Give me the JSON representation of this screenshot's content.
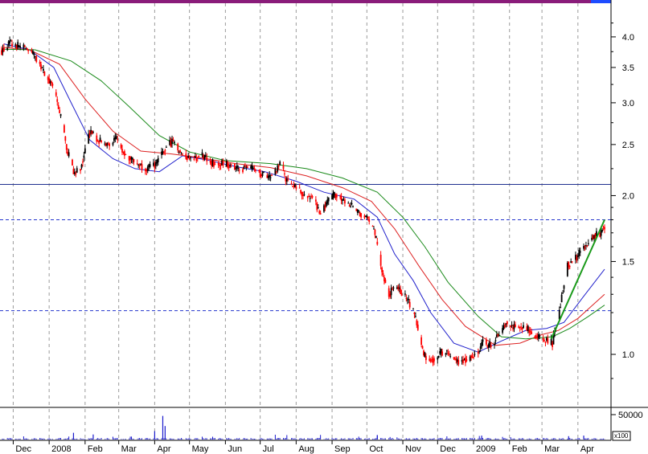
{
  "chart_data": {
    "type": "candlestick",
    "title": "",
    "price_axis": {
      "scale": "log",
      "ticks": [
        {
          "value": 1.0,
          "label": "1.0"
        },
        {
          "value": 1.5,
          "label": "1.5"
        },
        {
          "value": 2.0,
          "label": "2.0"
        },
        {
          "value": 2.5,
          "label": "2.5"
        },
        {
          "value": 3.0,
          "label": "3.0"
        },
        {
          "value": 3.5,
          "label": "3.5"
        },
        {
          "value": 4.0,
          "label": "4.0"
        }
      ],
      "ylim": [
        0.84,
        4.45
      ]
    },
    "volume_axis": {
      "ticks": [
        {
          "value": 50000,
          "label": "50000"
        }
      ],
      "multiplier_label": "x100"
    },
    "x_axis": {
      "labels": [
        "Dec",
        "2008",
        "Feb",
        "Mar",
        "Apr",
        "May",
        "Jun",
        "Jul",
        "Aug",
        "Sep",
        "Oct",
        "Nov",
        "Dec",
        "2009",
        "Feb",
        "Mar",
        "Apr"
      ],
      "start": "2007-11-21",
      "end": "2009-04-24"
    },
    "grid": "vertical dashed at month starts",
    "horizontal_lines": [
      {
        "value": 2.1,
        "style": "solid",
        "color": "#1f2f8f"
      },
      {
        "value": 1.8,
        "style": "dashed",
        "color": "#2233cc"
      },
      {
        "value": 1.21,
        "style": "dashed",
        "color": "#2233cc"
      }
    ],
    "trendline": {
      "color": "#1a9a1a",
      "points": [
        {
          "x": "2009-03-09",
          "y": 1.07
        },
        {
          "x": "2009-04-24",
          "y": 1.8
        }
      ]
    },
    "moving_averages": [
      {
        "color": "#2222cc",
        "points": [
          [
            "2007-11-23",
            3.88
          ],
          [
            "2007-12-15",
            3.78
          ],
          [
            "2008-01-05",
            3.5
          ],
          [
            "2008-01-20",
            3.0
          ],
          [
            "2008-02-05",
            2.55
          ],
          [
            "2008-02-25",
            2.35
          ],
          [
            "2008-03-15",
            2.25
          ],
          [
            "2008-04-05",
            2.22
          ],
          [
            "2008-04-25",
            2.38
          ],
          [
            "2008-05-15",
            2.34
          ],
          [
            "2008-06-10",
            2.27
          ],
          [
            "2008-07-05",
            2.22
          ],
          [
            "2008-08-01",
            2.13
          ],
          [
            "2008-08-25",
            2.03
          ],
          [
            "2008-09-20",
            1.97
          ],
          [
            "2008-10-10",
            1.82
          ],
          [
            "2008-10-25",
            1.55
          ],
          [
            "2008-11-10",
            1.38
          ],
          [
            "2008-11-25",
            1.2
          ],
          [
            "2008-12-15",
            1.05
          ],
          [
            "2009-01-05",
            1.01
          ],
          [
            "2009-01-25",
            1.06
          ],
          [
            "2009-02-15",
            1.11
          ],
          [
            "2009-03-05",
            1.12
          ],
          [
            "2009-03-20",
            1.15
          ],
          [
            "2009-04-05",
            1.28
          ],
          [
            "2009-04-24",
            1.45
          ]
        ]
      },
      {
        "color": "#dd2222",
        "points": [
          [
            "2007-11-23",
            3.82
          ],
          [
            "2007-12-15",
            3.78
          ],
          [
            "2008-01-10",
            3.55
          ],
          [
            "2008-02-01",
            3.05
          ],
          [
            "2008-02-25",
            2.65
          ],
          [
            "2008-03-20",
            2.43
          ],
          [
            "2008-04-15",
            2.4
          ],
          [
            "2008-05-10",
            2.36
          ],
          [
            "2008-06-10",
            2.3
          ],
          [
            "2008-07-10",
            2.26
          ],
          [
            "2008-08-10",
            2.18
          ],
          [
            "2008-09-10",
            2.07
          ],
          [
            "2008-10-05",
            1.95
          ],
          [
            "2008-10-25",
            1.73
          ],
          [
            "2008-11-15",
            1.47
          ],
          [
            "2008-12-05",
            1.27
          ],
          [
            "2008-12-25",
            1.13
          ],
          [
            "2009-01-20",
            1.04
          ],
          [
            "2009-02-10",
            1.05
          ],
          [
            "2009-03-01",
            1.09
          ],
          [
            "2009-03-15",
            1.11
          ],
          [
            "2009-04-01",
            1.17
          ],
          [
            "2009-04-24",
            1.3
          ]
        ]
      },
      {
        "color": "#1a8a1a",
        "points": [
          [
            "2007-11-23",
            3.79
          ],
          [
            "2007-12-20",
            3.78
          ],
          [
            "2008-01-20",
            3.6
          ],
          [
            "2008-02-15",
            3.3
          ],
          [
            "2008-03-10",
            2.95
          ],
          [
            "2008-04-05",
            2.6
          ],
          [
            "2008-05-01",
            2.42
          ],
          [
            "2008-06-01",
            2.33
          ],
          [
            "2008-07-10",
            2.3
          ],
          [
            "2008-08-10",
            2.25
          ],
          [
            "2008-09-10",
            2.16
          ],
          [
            "2008-10-10",
            2.03
          ],
          [
            "2008-11-01",
            1.82
          ],
          [
            "2008-11-20",
            1.6
          ],
          [
            "2008-12-10",
            1.37
          ],
          [
            "2009-01-05",
            1.18
          ],
          [
            "2009-01-25",
            1.08
          ],
          [
            "2009-02-15",
            1.07
          ],
          [
            "2009-03-10",
            1.08
          ],
          [
            "2009-03-25",
            1.12
          ],
          [
            "2009-04-10",
            1.18
          ],
          [
            "2009-04-24",
            1.24
          ]
        ]
      }
    ],
    "price_path": [
      [
        "2007-11-21",
        3.75
      ],
      [
        "2007-11-28",
        3.88
      ],
      [
        "2007-12-05",
        3.85
      ],
      [
        "2007-12-12",
        3.8
      ],
      [
        "2007-12-19",
        3.68
      ],
      [
        "2007-12-27",
        3.45
      ],
      [
        "2008-01-03",
        3.25
      ],
      [
        "2008-01-10",
        2.9
      ],
      [
        "2008-01-16",
        2.45
      ],
      [
        "2008-01-23",
        2.2
      ],
      [
        "2008-01-29",
        2.28
      ],
      [
        "2008-02-05",
        2.65
      ],
      [
        "2008-02-12",
        2.55
      ],
      [
        "2008-02-20",
        2.5
      ],
      [
        "2008-02-28",
        2.55
      ],
      [
        "2008-03-07",
        2.4
      ],
      [
        "2008-03-17",
        2.3
      ],
      [
        "2008-03-26",
        2.25
      ],
      [
        "2008-04-03",
        2.3
      ],
      [
        "2008-04-10",
        2.45
      ],
      [
        "2008-04-17",
        2.55
      ],
      [
        "2008-04-24",
        2.4
      ],
      [
        "2008-05-02",
        2.35
      ],
      [
        "2008-05-12",
        2.38
      ],
      [
        "2008-05-22",
        2.3
      ],
      [
        "2008-06-02",
        2.3
      ],
      [
        "2008-06-12",
        2.25
      ],
      [
        "2008-06-23",
        2.25
      ],
      [
        "2008-07-02",
        2.2
      ],
      [
        "2008-07-10",
        2.15
      ],
      [
        "2008-07-18",
        2.28
      ],
      [
        "2008-07-25",
        2.12
      ],
      [
        "2008-08-01",
        2.08
      ],
      [
        "2008-08-08",
        2.0
      ],
      [
        "2008-08-15",
        1.98
      ],
      [
        "2008-08-22",
        1.85
      ],
      [
        "2008-08-29",
        1.95
      ],
      [
        "2008-09-05",
        2.02
      ],
      [
        "2008-09-12",
        1.95
      ],
      [
        "2008-09-19",
        1.9
      ],
      [
        "2008-09-26",
        1.85
      ],
      [
        "2008-10-02",
        1.8
      ],
      [
        "2008-10-08",
        1.7
      ],
      [
        "2008-10-14",
        1.45
      ],
      [
        "2008-10-20",
        1.3
      ],
      [
        "2008-10-26",
        1.35
      ],
      [
        "2008-11-01",
        1.3
      ],
      [
        "2008-11-07",
        1.25
      ],
      [
        "2008-11-13",
        1.15
      ],
      [
        "2008-11-19",
        1.0
      ],
      [
        "2008-11-25",
        0.97
      ],
      [
        "2008-12-01",
        1.0
      ],
      [
        "2008-12-08",
        1.02
      ],
      [
        "2008-12-15",
        0.98
      ],
      [
        "2008-12-22",
        0.97
      ],
      [
        "2009-01-02",
        1.0
      ],
      [
        "2009-01-09",
        1.05
      ],
      [
        "2009-01-16",
        1.04
      ],
      [
        "2009-01-23",
        1.1
      ],
      [
        "2009-01-30",
        1.15
      ],
      [
        "2009-02-06",
        1.12
      ],
      [
        "2009-02-13",
        1.13
      ],
      [
        "2009-02-20",
        1.1
      ],
      [
        "2009-02-27",
        1.08
      ],
      [
        "2009-03-06",
        1.06
      ],
      [
        "2009-03-10",
        1.05
      ],
      [
        "2009-03-14",
        1.15
      ],
      [
        "2009-03-18",
        1.28
      ],
      [
        "2009-03-23",
        1.48
      ],
      [
        "2009-03-28",
        1.5
      ],
      [
        "2009-04-03",
        1.56
      ],
      [
        "2009-04-09",
        1.62
      ],
      [
        "2009-04-15",
        1.68
      ],
      [
        "2009-04-20",
        1.7
      ],
      [
        "2009-04-24",
        1.75
      ]
    ],
    "volume_spikes": [
      [
        "2008-01-22",
        12000
      ],
      [
        "2008-02-08",
        9000
      ],
      [
        "2008-04-08",
        42000
      ],
      [
        "2008-04-10",
        24000
      ],
      [
        "2008-04-01",
        15000
      ],
      [
        "2008-10-10",
        8000
      ],
      [
        "2009-01-08",
        7000
      ],
      [
        "2009-03-24",
        6000
      ],
      [
        "2009-04-06",
        7000
      ]
    ]
  }
}
